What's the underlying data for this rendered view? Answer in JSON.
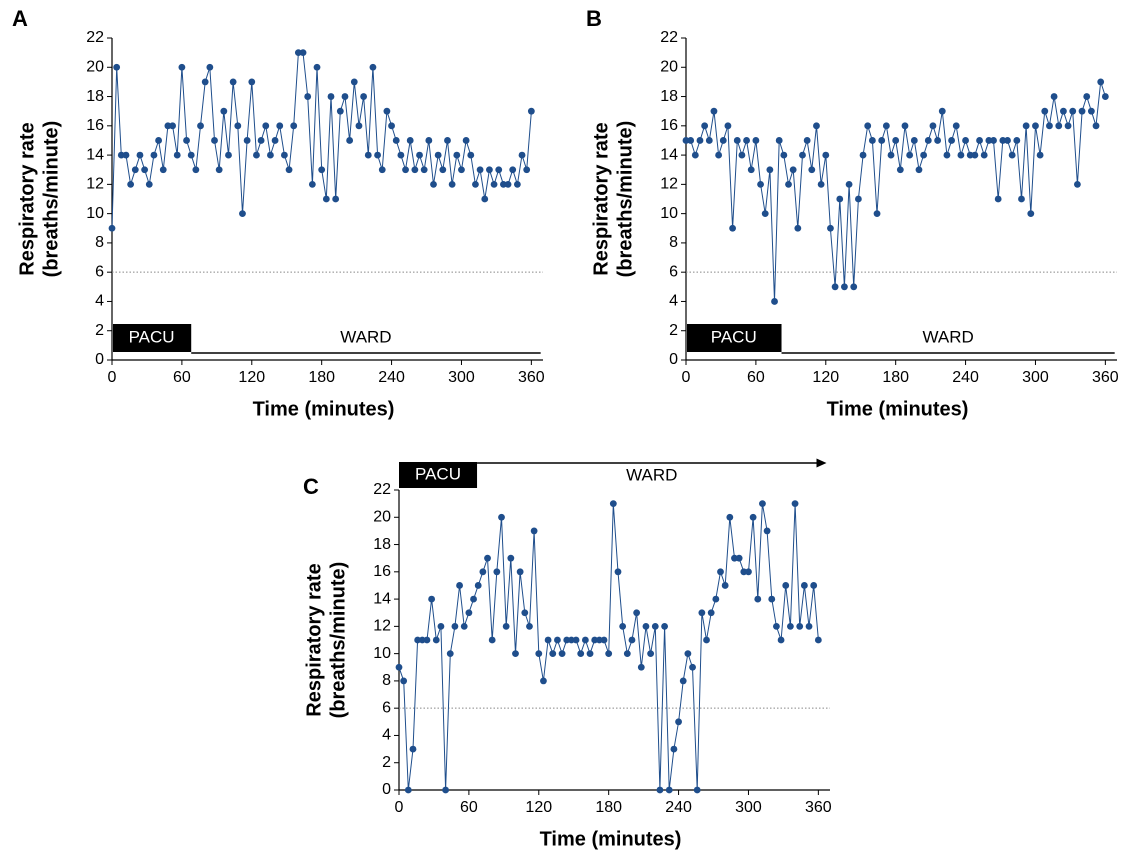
{
  "chart_data": [
    {
      "type": "line",
      "panel_label": "A",
      "xlabel": "Time (minutes)",
      "ylabel": [
        "Respiratory rate",
        "(breaths/minute)"
      ],
      "color": "#1f4e8c",
      "xlim": [
        0,
        370
      ],
      "ylim": [
        0,
        22
      ],
      "xticks": [
        0,
        60,
        120,
        180,
        240,
        300,
        360
      ],
      "yticks": [
        0,
        2,
        4,
        6,
        8,
        10,
        12,
        14,
        16,
        18,
        20,
        22
      ],
      "threshold": 6,
      "phases": [
        {
          "label": "PACU",
          "x": [
            0,
            68
          ]
        },
        {
          "label": "WARD",
          "x": [
            68,
            368
          ]
        }
      ],
      "x": [
        0,
        4,
        8,
        12,
        16,
        20,
        24,
        28,
        32,
        36,
        40,
        44,
        48,
        52,
        56,
        60,
        64,
        68,
        72,
        76,
        80,
        84,
        88,
        92,
        96,
        100,
        104,
        108,
        112,
        116,
        120,
        124,
        128,
        132,
        136,
        140,
        144,
        148,
        152,
        156,
        160,
        164,
        168,
        172,
        176,
        180,
        184,
        188,
        192,
        196,
        200,
        204,
        208,
        212,
        216,
        220,
        224,
        228,
        232,
        236,
        240,
        244,
        248,
        252,
        256,
        260,
        264,
        268,
        272,
        276,
        280,
        284,
        288,
        292,
        296,
        300,
        304,
        308,
        312,
        316,
        320,
        324,
        328,
        332,
        336,
        340,
        344,
        348,
        352,
        356,
        360
      ],
      "values": [
        9,
        20,
        14,
        14,
        12,
        13,
        14,
        13,
        12,
        14,
        15,
        13,
        16,
        16,
        14,
        20,
        15,
        14,
        13,
        16,
        19,
        20,
        15,
        13,
        17,
        14,
        19,
        16,
        10,
        15,
        19,
        14,
        15,
        16,
        14,
        15,
        16,
        14,
        13,
        16,
        21,
        21,
        18,
        12,
        20,
        13,
        11,
        18,
        11,
        17,
        18,
        15,
        19,
        16,
        18,
        14,
        20,
        14,
        13,
        17,
        16,
        15,
        14,
        13,
        15,
        13,
        14,
        13,
        15,
        12,
        14,
        13,
        15,
        12,
        14,
        13,
        15,
        14,
        12,
        13,
        11,
        13,
        12,
        13,
        12,
        12,
        13,
        12,
        14,
        13,
        17
      ]
    },
    {
      "type": "line",
      "panel_label": "B",
      "xlabel": "Time (minutes)",
      "ylabel": [
        "Respiratory rate",
        "(breaths/minute)"
      ],
      "color": "#1f4e8c",
      "xlim": [
        0,
        370
      ],
      "ylim": [
        0,
        22
      ],
      "xticks": [
        0,
        60,
        120,
        180,
        240,
        300,
        360
      ],
      "yticks": [
        0,
        2,
        4,
        6,
        8,
        10,
        12,
        14,
        16,
        18,
        20,
        22
      ],
      "threshold": 6,
      "phases": [
        {
          "label": "PACU",
          "x": [
            0,
            82
          ]
        },
        {
          "label": "WARD",
          "x": [
            82,
            368
          ]
        }
      ],
      "x": [
        0,
        4,
        8,
        12,
        16,
        20,
        24,
        28,
        32,
        36,
        40,
        44,
        48,
        52,
        56,
        60,
        64,
        68,
        72,
        76,
        80,
        84,
        88,
        92,
        96,
        100,
        104,
        108,
        112,
        116,
        120,
        124,
        128,
        132,
        136,
        140,
        144,
        148,
        152,
        156,
        160,
        164,
        168,
        172,
        176,
        180,
        184,
        188,
        192,
        196,
        200,
        204,
        208,
        212,
        216,
        220,
        224,
        228,
        232,
        236,
        240,
        244,
        248,
        252,
        256,
        260,
        264,
        268,
        272,
        276,
        280,
        284,
        288,
        292,
        296,
        300,
        304,
        308,
        312,
        316,
        320,
        324,
        328,
        332,
        336,
        340,
        344,
        348,
        352,
        356,
        360
      ],
      "values": [
        15,
        15,
        14,
        15,
        16,
        15,
        17,
        14,
        15,
        16,
        9,
        15,
        14,
        15,
        13,
        15,
        12,
        10,
        13,
        4,
        15,
        14,
        12,
        13,
        9,
        14,
        15,
        13,
        16,
        12,
        14,
        9,
        5,
        11,
        5,
        12,
        5,
        11,
        14,
        16,
        15,
        10,
        15,
        16,
        14,
        15,
        13,
        16,
        14,
        15,
        13,
        14,
        15,
        16,
        15,
        17,
        14,
        15,
        16,
        14,
        15,
        14,
        14,
        15,
        14,
        15,
        15,
        11,
        15,
        15,
        14,
        15,
        11,
        16,
        10,
        16,
        14,
        17,
        16,
        18,
        16,
        17,
        16,
        17,
        12,
        17,
        18,
        17,
        16,
        19,
        18
      ]
    },
    {
      "type": "line",
      "panel_label": "C",
      "xlabel": "Time (minutes)",
      "ylabel": [
        "Respiratory rate",
        "(breaths/minute)"
      ],
      "color": "#1f4e8c",
      "xlim": [
        0,
        370
      ],
      "ylim": [
        0,
        22
      ],
      "xticks": [
        0,
        60,
        120,
        180,
        240,
        300,
        360
      ],
      "yticks": [
        0,
        2,
        4,
        6,
        8,
        10,
        12,
        14,
        16,
        18,
        20,
        22
      ],
      "threshold": 6,
      "phases": [
        {
          "label": "PACU",
          "x": [
            0,
            67
          ]
        },
        {
          "label": "WARD",
          "x": [
            67,
            367
          ]
        }
      ],
      "x": [
        0,
        4,
        8,
        12,
        16,
        20,
        24,
        28,
        32,
        36,
        40,
        44,
        48,
        52,
        56,
        60,
        64,
        68,
        72,
        76,
        80,
        84,
        88,
        92,
        96,
        100,
        104,
        108,
        112,
        116,
        120,
        124,
        128,
        132,
        136,
        140,
        144,
        148,
        152,
        156,
        160,
        164,
        168,
        172,
        176,
        180,
        184,
        188,
        192,
        196,
        200,
        204,
        208,
        212,
        216,
        220,
        224,
        228,
        232,
        236,
        240,
        244,
        248,
        252,
        256,
        260,
        264,
        268,
        272,
        276,
        280,
        284,
        288,
        292,
        296,
        300,
        304,
        308,
        312,
        316,
        320,
        324,
        328,
        332,
        336,
        340,
        344,
        348,
        352,
        356,
        360
      ],
      "values": [
        9,
        8,
        0,
        3,
        11,
        11,
        11,
        14,
        11,
        12,
        0,
        10,
        12,
        15,
        12,
        13,
        14,
        15,
        16,
        17,
        11,
        16,
        20,
        12,
        17,
        10,
        16,
        13,
        12,
        19,
        10,
        8,
        11,
        10,
        11,
        10,
        11,
        11,
        11,
        10,
        11,
        10,
        11,
        11,
        11,
        10,
        21,
        16,
        12,
        10,
        11,
        13,
        9,
        12,
        10,
        12,
        0,
        12,
        0,
        3,
        5,
        8,
        10,
        9,
        0,
        13,
        11,
        13,
        14,
        16,
        15,
        20,
        17,
        17,
        16,
        16,
        20,
        14,
        21,
        19,
        14,
        12,
        11,
        15,
        12,
        21,
        12,
        15,
        12,
        15,
        11
      ]
    }
  ]
}
